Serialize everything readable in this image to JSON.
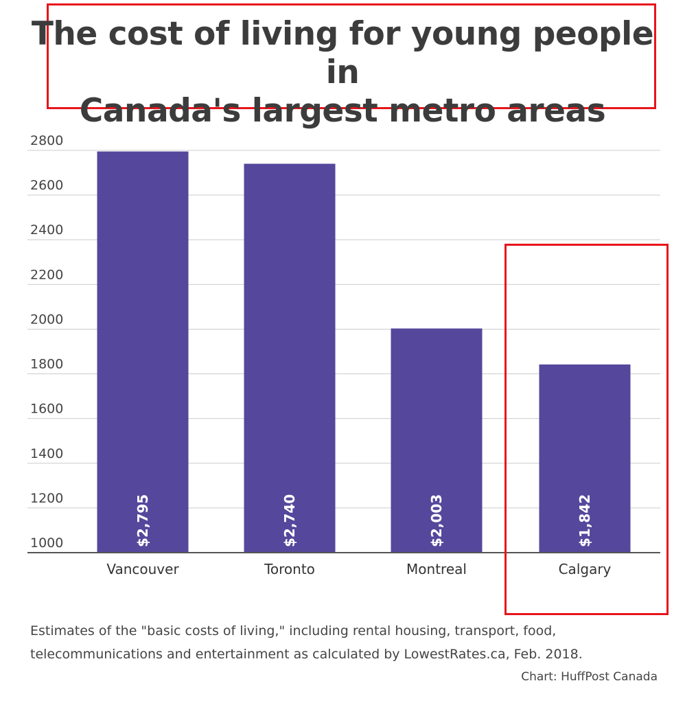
{
  "title_line1": "The cost of living for young people in",
  "title_line2": "Canada's largest metro areas",
  "note_line1": "Estimates of the \"basic costs of living,\" including rental housing, transport, food,",
  "note_line2": "telecommunications and entertainment as calculated by LowestRates.ca, Feb. 2018.",
  "credit": "Chart: HuffPost Canada",
  "colors": {
    "bar": "#55479b",
    "highlight": "#e8141b",
    "grid": "#cccccc",
    "axis": "#555555"
  },
  "chart_data": {
    "type": "bar",
    "categories": [
      "Vancouver",
      "Toronto",
      "Montreal",
      "Calgary"
    ],
    "values": [
      2795,
      2740,
      2003,
      1842
    ],
    "value_labels": [
      "$2,795",
      "$2,740",
      "$2,003",
      "$1,842"
    ],
    "yticks": [
      1000,
      1200,
      1400,
      1600,
      1800,
      2000,
      2200,
      2400,
      2600,
      2800
    ],
    "ylim": [
      1000,
      2800
    ],
    "grid": true,
    "legend": false
  }
}
